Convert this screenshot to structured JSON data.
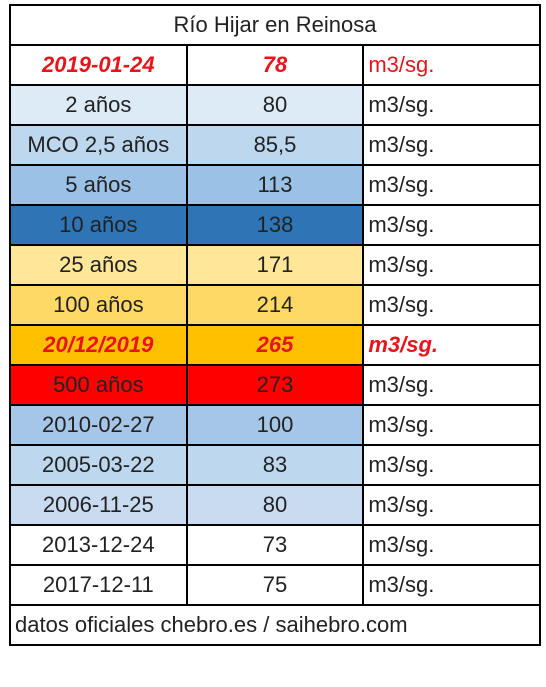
{
  "table": {
    "title": "Río Hijar en Reinosa",
    "rows": [
      [
        "2019-01-24",
        78,
        "m3/sg."
      ],
      [
        "2 años",
        80,
        "m3/sg."
      ],
      [
        "MCO 2,5 años",
        "85,5",
        "m3/sg."
      ],
      [
        "5 años",
        113,
        "m3/sg."
      ],
      [
        "10 años",
        138,
        "m3/sg."
      ],
      [
        "25 años",
        171,
        "m3/sg."
      ],
      [
        "100 años",
        214,
        "m3/sg."
      ],
      [
        "20/12/2019",
        265,
        "m3/sg."
      ],
      [
        "500 años",
        273,
        "m3/sg."
      ],
      [
        "2010-02-27",
        100,
        "m3/sg."
      ],
      [
        "2005-03-22",
        83,
        "m3/sg."
      ],
      [
        "2006-11-25",
        80,
        "m3/sg."
      ],
      [
        "2013-12-24",
        73,
        "m3/sg."
      ],
      [
        "2017-12-11",
        75,
        "m3/sg."
      ]
    ],
    "footer": "datos oficiales chebro.es / saihebro.com"
  }
}
